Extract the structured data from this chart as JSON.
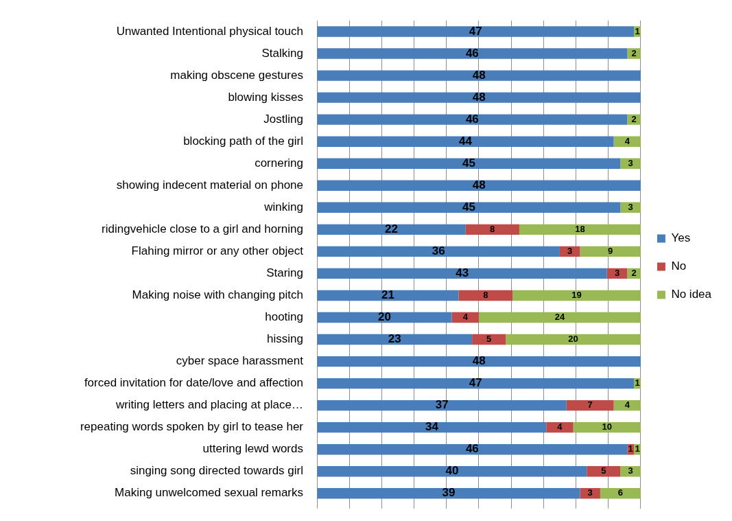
{
  "chart_data": {
    "type": "bar",
    "orientation": "horizontal",
    "stacked": true,
    "categories": [
      "Unwanted Intentional physical touch",
      "Stalking",
      "making obscene gestures",
      "blowing kisses",
      "Jostling",
      "blocking path of the girl",
      "cornering",
      "showing indecent material on phone",
      "winking",
      "ridingvehicle close to a girl and horning",
      "Flahing mirror or any other object",
      "Staring",
      "Making noise with changing pitch",
      "hooting",
      "hissing",
      "cyber space harassment",
      "forced invitation for date/love and affection",
      "writing letters and placing at place…",
      "repeating words spoken by girl to tease her",
      "uttering lewd words",
      "singing song directed towards girl",
      "Making unwelcomed sexual remarks"
    ],
    "series": [
      {
        "name": "Yes",
        "color": "#4a7ebb",
        "values": [
          47,
          46,
          48,
          48,
          46,
          44,
          45,
          48,
          45,
          22,
          36,
          43,
          21,
          20,
          23,
          48,
          47,
          37,
          34,
          46,
          40,
          39
        ],
        "value_labels": [
          "47",
          "46",
          "48",
          "48",
          "46",
          "44",
          "45",
          "48",
          "45",
          "22",
          "36",
          "43",
          "21",
          "20",
          "23",
          "48",
          "47",
          "37",
          "34",
          "46",
          "40",
          "39"
        ]
      },
      {
        "name": "No",
        "color": "#be4b48",
        "values": [
          0,
          0,
          0,
          0,
          0,
          0,
          0,
          0,
          0,
          8,
          3,
          3,
          8,
          4,
          5,
          0,
          0,
          7,
          4,
          1,
          5,
          3
        ],
        "value_labels": [
          null,
          null,
          null,
          null,
          null,
          null,
          null,
          null,
          null,
          "8",
          "3",
          "3",
          "8",
          "4",
          "5",
          null,
          null,
          "7",
          "4",
          "1",
          "5",
          "3"
        ]
      },
      {
        "name": "No idea",
        "color": "#98b954",
        "values": [
          1,
          2,
          0,
          0,
          2,
          4,
          3,
          0,
          3,
          18,
          9,
          2,
          19,
          24,
          20,
          0,
          1,
          4,
          10,
          1,
          3,
          6
        ],
        "value_labels": [
          "1",
          "2",
          null,
          null,
          "2",
          "4",
          "3",
          null,
          "3",
          "18",
          "9",
          "2",
          "19",
          "24",
          "20",
          null,
          "1",
          "4",
          "10",
          "1",
          "3",
          "6"
        ]
      }
    ],
    "xlim": [
      0,
      48
    ],
    "xticks": [
      {
        "value": 0,
        "label": null
      },
      {
        "value": 4.8,
        "label": null
      },
      {
        "value": 9.6,
        "label": null
      },
      {
        "value": 14.4,
        "label": null
      },
      {
        "value": 19.2,
        "label": null
      },
      {
        "value": 24,
        "label": null
      },
      {
        "value": 28.8,
        "label": null
      },
      {
        "value": 33.6,
        "label": null
      },
      {
        "value": 38.4,
        "label": null
      },
      {
        "value": 43.2,
        "label": null
      },
      {
        "value": 48,
        "label": null
      }
    ],
    "tick_labels": "y",
    "grid": "x",
    "legend": "right"
  }
}
